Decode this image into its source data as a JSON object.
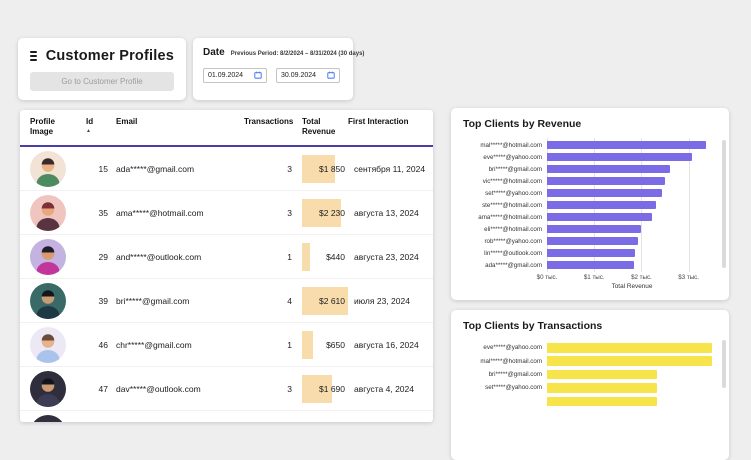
{
  "header": {
    "title": "Customer Profiles",
    "go_button_label": "Go to Customer Profile"
  },
  "date_panel": {
    "label": "Date",
    "previous_period": "Previous Period: 8/2/2024 – 8/31/2024 (30 days)",
    "start_date": "01.09.2024",
    "end_date": "30.09.2024",
    "calendar_icon_color": "#4f7df9"
  },
  "table": {
    "columns": [
      "Profile\nImage",
      "Id",
      "Email",
      "Transactions",
      "Total\nRevenue",
      "First Interaction"
    ],
    "sort_column_index": 1,
    "sort_indicator": "▲",
    "revenue_max": 2610,
    "highlight_color": "#f8dcab",
    "header_underline_color": "#4b3fa7",
    "rows": [
      {
        "id": "15",
        "email": "ada*****@gmail.com",
        "transactions": "3",
        "revenue": "$1 850",
        "revenue_value": 1850,
        "first_interaction": "сентября 11, 2024",
        "avatar": {
          "bg": "#f2e3d6",
          "skin": "#eab287",
          "hair": "#3a2b28",
          "shirt": "#4d8a5f"
        }
      },
      {
        "id": "35",
        "email": "ama*****@hotmail.com",
        "transactions": "3",
        "revenue": "$2 230",
        "revenue_value": 2230,
        "first_interaction": "августа 13, 2024",
        "avatar": {
          "bg": "#f0c5c0",
          "skin": "#e8a87c",
          "hair": "#7e2f35",
          "shirt": "#5a3340"
        }
      },
      {
        "id": "29",
        "email": "and*****@outlook.com",
        "transactions": "1",
        "revenue": "$440",
        "revenue_value": 440,
        "first_interaction": "августа 23, 2024",
        "avatar": {
          "bg": "#c4b2e0",
          "skin": "#d99a6c",
          "hair": "#221c2a",
          "shirt": "#c2369b"
        }
      },
      {
        "id": "39",
        "email": "bri*****@gmail.com",
        "transactions": "4",
        "revenue": "$2 610",
        "revenue_value": 2610,
        "first_interaction": "июля 23, 2024",
        "avatar": {
          "bg": "#3a6a68",
          "skin": "#c99c76",
          "hair": "#15151d",
          "shirt": "#1d3a44"
        }
      },
      {
        "id": "46",
        "email": "chr*****@gmail.com",
        "transactions": "1",
        "revenue": "$650",
        "revenue_value": 650,
        "first_interaction": "августа 16, 2024",
        "avatar": {
          "bg": "#ece9f5",
          "skin": "#e8b28c",
          "hair": "#6b4a3a",
          "shirt": "#a9c3ec"
        }
      },
      {
        "id": "47",
        "email": "dav*****@outlook.com",
        "transactions": "3",
        "revenue": "$1 690",
        "revenue_value": 1690,
        "first_interaction": "августа 4, 2024",
        "avatar": {
          "bg": "#2e2e3c",
          "skin": "#c99c76",
          "hair": "#14141c",
          "shirt": "#3c3c55"
        }
      },
      {
        "id": "",
        "email": "",
        "transactions": "",
        "revenue": "",
        "revenue_value": 0,
        "first_interaction": "",
        "avatar": {
          "bg": "#30303e",
          "skin": "#c99c76",
          "hair": "#16161e",
          "shirt": "#3a3a4c"
        }
      }
    ]
  },
  "chart_data": [
    {
      "type": "bar",
      "orientation": "horizontal",
      "title": "Top Clients by Revenue",
      "categories": [
        "mal*****@hotmail.com",
        "eve*****@yahoo.com",
        "bri*****@gmail.com",
        "vic*****@hotmail.com",
        "set*****@yahoo.com",
        "ste*****@hotmail.com",
        "ama*****@hotmail.com",
        "eli*****@hotmail.com",
        "rob*****@yahoo.com",
        "lin*****@outlook.com",
        "ada*****@gmail.com"
      ],
      "values": [
        3370,
        3080,
        2610,
        2500,
        2440,
        2300,
        2230,
        1980,
        1920,
        1870,
        1850
      ],
      "xlabel": "Total Revenue",
      "x_ticks": [
        {
          "label": "$0 тыс.",
          "value": 0
        },
        {
          "label": "$1 тыс.",
          "value": 1000
        },
        {
          "label": "$2 тыс.",
          "value": 2000
        },
        {
          "label": "$3 тыс.",
          "value": 3000
        }
      ],
      "xlim": [
        0,
        3600
      ],
      "bar_color": "#7b6ce6",
      "grid": true,
      "legend": false
    },
    {
      "type": "bar",
      "orientation": "horizontal",
      "title": "Top Clients by Transactions",
      "categories": [
        "eve*****@yahoo.com",
        "mal*****@hotmail.com",
        "bri*****@gmail.com",
        "set*****@yahoo.com",
        ""
      ],
      "values": [
        6,
        6,
        4,
        4,
        4
      ],
      "xlabel": "",
      "x_ticks": [],
      "xlim": [
        0,
        6.2
      ],
      "bar_color": "#f7e44b",
      "grid": false,
      "legend": false
    }
  ]
}
